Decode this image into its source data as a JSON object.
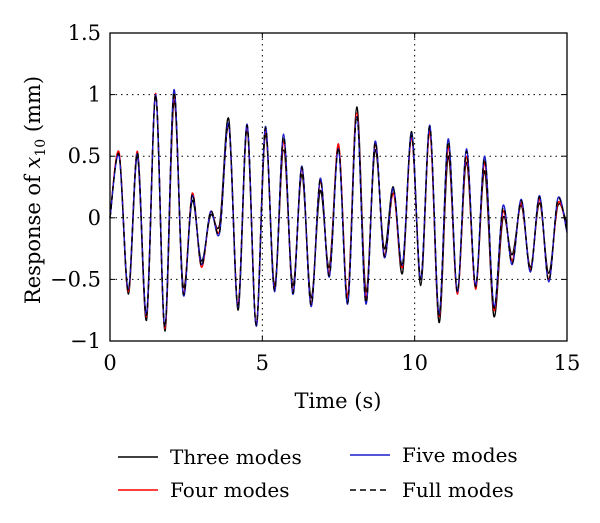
{
  "chart_data": {
    "type": "line",
    "xlabel": "Time (s)",
    "ylabel_prefix": "Response of ",
    "ylabel_var": "x",
    "ylabel_sub": "10",
    "ylabel_suffix": " (mm)",
    "xlim": [
      0,
      15
    ],
    "ylim": [
      -1,
      1.5
    ],
    "xticks": [
      0,
      5,
      10,
      15
    ],
    "xtick_labels": [
      "0",
      "5",
      "10",
      "15"
    ],
    "yticks": [
      -1,
      -0.5,
      0,
      0.5,
      1,
      1.5
    ],
    "ytick_labels": [
      "−1",
      "−0.5",
      "0",
      "0.5",
      "1",
      "1.5"
    ],
    "grid": "dotted",
    "legend_position": "bottom",
    "x": [
      0,
      0.3,
      0.6,
      0.9,
      1.2,
      1.5,
      1.8,
      2.1,
      2.4,
      2.7,
      3.0,
      3.3,
      3.6,
      3.9,
      4.2,
      4.5,
      4.8,
      5.1,
      5.4,
      5.7,
      6.0,
      6.3,
      6.6,
      6.9,
      7.2,
      7.5,
      7.8,
      8.1,
      8.4,
      8.7,
      9.0,
      9.3,
      9.6,
      9.9,
      10.2,
      10.5,
      10.8,
      11.1,
      11.4,
      11.7,
      12.0,
      12.3,
      12.6,
      12.9,
      13.2,
      13.5,
      13.8,
      14.1,
      14.4,
      14.7,
      15.0
    ],
    "series": [
      {
        "name": "Three modes",
        "color": "#000000",
        "dash": "solid",
        "values": [
          0.0,
          0.52,
          -0.62,
          0.5,
          -0.83,
          1.0,
          -0.92,
          0.95,
          -0.55,
          0.14,
          -0.35,
          0.02,
          -0.05,
          0.8,
          -0.75,
          0.72,
          -0.88,
          0.68,
          -0.55,
          0.55,
          -0.55,
          0.35,
          -0.65,
          0.22,
          -0.4,
          0.58,
          -0.65,
          0.9,
          -0.6,
          0.55,
          -0.25,
          0.25,
          -0.45,
          0.7,
          -0.55,
          0.72,
          -0.85,
          0.5,
          -0.6,
          0.45,
          -0.55,
          0.38,
          -0.8,
          0.0,
          -0.3,
          0.1,
          -0.4,
          0.12,
          -0.45,
          0.1,
          -0.05
        ]
      },
      {
        "name": "Four modes",
        "color": "#ff0000",
        "dash": "solid",
        "values": [
          0.0,
          0.53,
          -0.6,
          0.54,
          -0.8,
          1.01,
          -0.9,
          1.0,
          -0.6,
          0.2,
          -0.4,
          0.05,
          -0.1,
          0.75,
          -0.7,
          0.74,
          -0.86,
          0.72,
          -0.58,
          0.62,
          -0.6,
          0.4,
          -0.7,
          0.3,
          -0.45,
          0.6,
          -0.65,
          0.85,
          -0.65,
          0.6,
          -0.3,
          0.2,
          -0.4,
          0.65,
          -0.5,
          0.7,
          -0.8,
          0.58,
          -0.62,
          0.5,
          -0.58,
          0.45,
          -0.75,
          0.05,
          -0.35,
          0.12,
          -0.42,
          0.15,
          -0.5,
          0.12,
          -0.1
        ]
      },
      {
        "name": "Five modes",
        "color": "#1c1ccc",
        "dash": "solid",
        "values": [
          0.0,
          0.5,
          -0.58,
          0.52,
          -0.78,
          1.0,
          -0.88,
          1.04,
          -0.62,
          0.18,
          -0.38,
          0.05,
          -0.12,
          0.76,
          -0.72,
          0.76,
          -0.88,
          0.74,
          -0.6,
          0.68,
          -0.62,
          0.42,
          -0.72,
          0.32,
          -0.48,
          0.56,
          -0.7,
          0.82,
          -0.7,
          0.62,
          -0.32,
          0.24,
          -0.38,
          0.68,
          -0.5,
          0.75,
          -0.78,
          0.64,
          -0.6,
          0.56,
          -0.55,
          0.5,
          -0.72,
          0.1,
          -0.38,
          0.15,
          -0.44,
          0.18,
          -0.52,
          0.16,
          -0.12
        ]
      },
      {
        "name": "Full modes",
        "color": "#000000",
        "dash": "dashed",
        "values": [
          0.0,
          0.51,
          -0.59,
          0.53,
          -0.79,
          1.0,
          -0.89,
          1.02,
          -0.61,
          0.19,
          -0.39,
          0.05,
          -0.11,
          0.75,
          -0.71,
          0.75,
          -0.87,
          0.73,
          -0.59,
          0.66,
          -0.61,
          0.41,
          -0.71,
          0.31,
          -0.47,
          0.57,
          -0.69,
          0.83,
          -0.69,
          0.61,
          -0.31,
          0.23,
          -0.39,
          0.67,
          -0.5,
          0.74,
          -0.79,
          0.62,
          -0.6,
          0.54,
          -0.56,
          0.48,
          -0.73,
          0.08,
          -0.37,
          0.14,
          -0.43,
          0.17,
          -0.51,
          0.15,
          -0.11
        ]
      }
    ]
  }
}
